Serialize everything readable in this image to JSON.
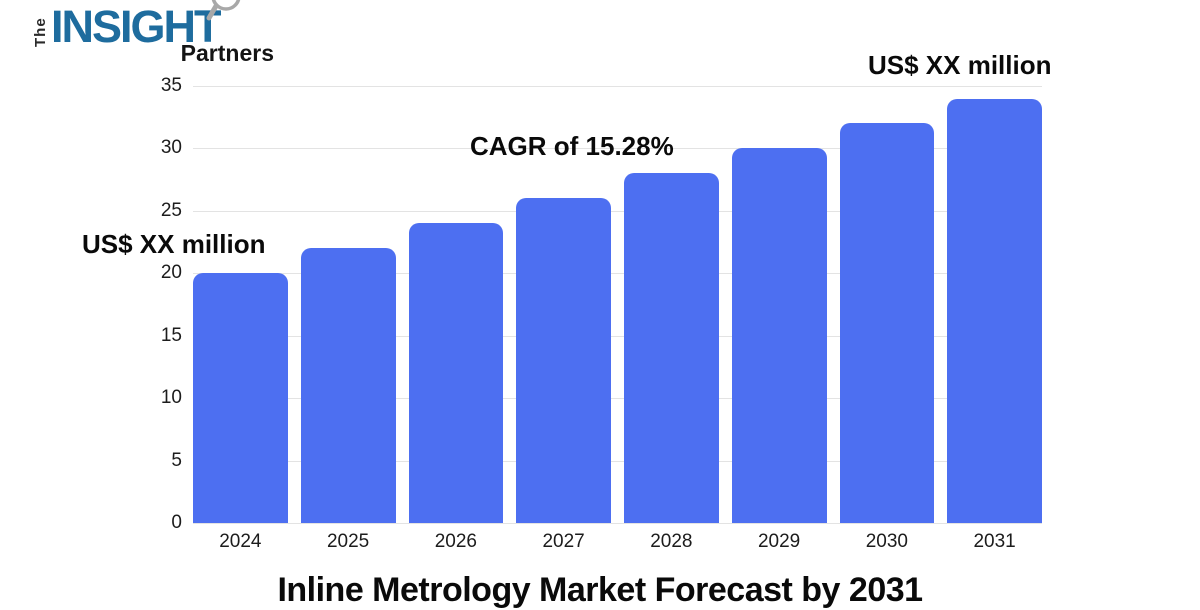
{
  "logo": {
    "the": "The",
    "insight": "INSIGHT",
    "partners": "Partners",
    "insight_color": "#1E6C9E"
  },
  "chart_data": {
    "type": "bar",
    "title": "Inline Metrology Market Forecast by 2031",
    "categories": [
      "2024",
      "2025",
      "2026",
      "2027",
      "2028",
      "2029",
      "2030",
      "2031"
    ],
    "values": [
      20,
      22,
      24,
      26,
      28,
      30,
      32,
      34
    ],
    "ylim": [
      0,
      35
    ],
    "yticks": [
      0,
      5,
      10,
      15,
      20,
      25,
      30,
      35
    ],
    "xlabel": "",
    "ylabel": "",
    "grid": true,
    "legend": false,
    "bar_color": "#4D6FF1",
    "gridline_color": "#e3e3e3",
    "annotations": [
      {
        "text": "US$ XX million",
        "position": "left-of-first-bar"
      },
      {
        "text": "CAGR of 15.28%",
        "position": "above-2027-bar"
      },
      {
        "text": "US$ XX million",
        "position": "above-last-bar"
      }
    ]
  }
}
